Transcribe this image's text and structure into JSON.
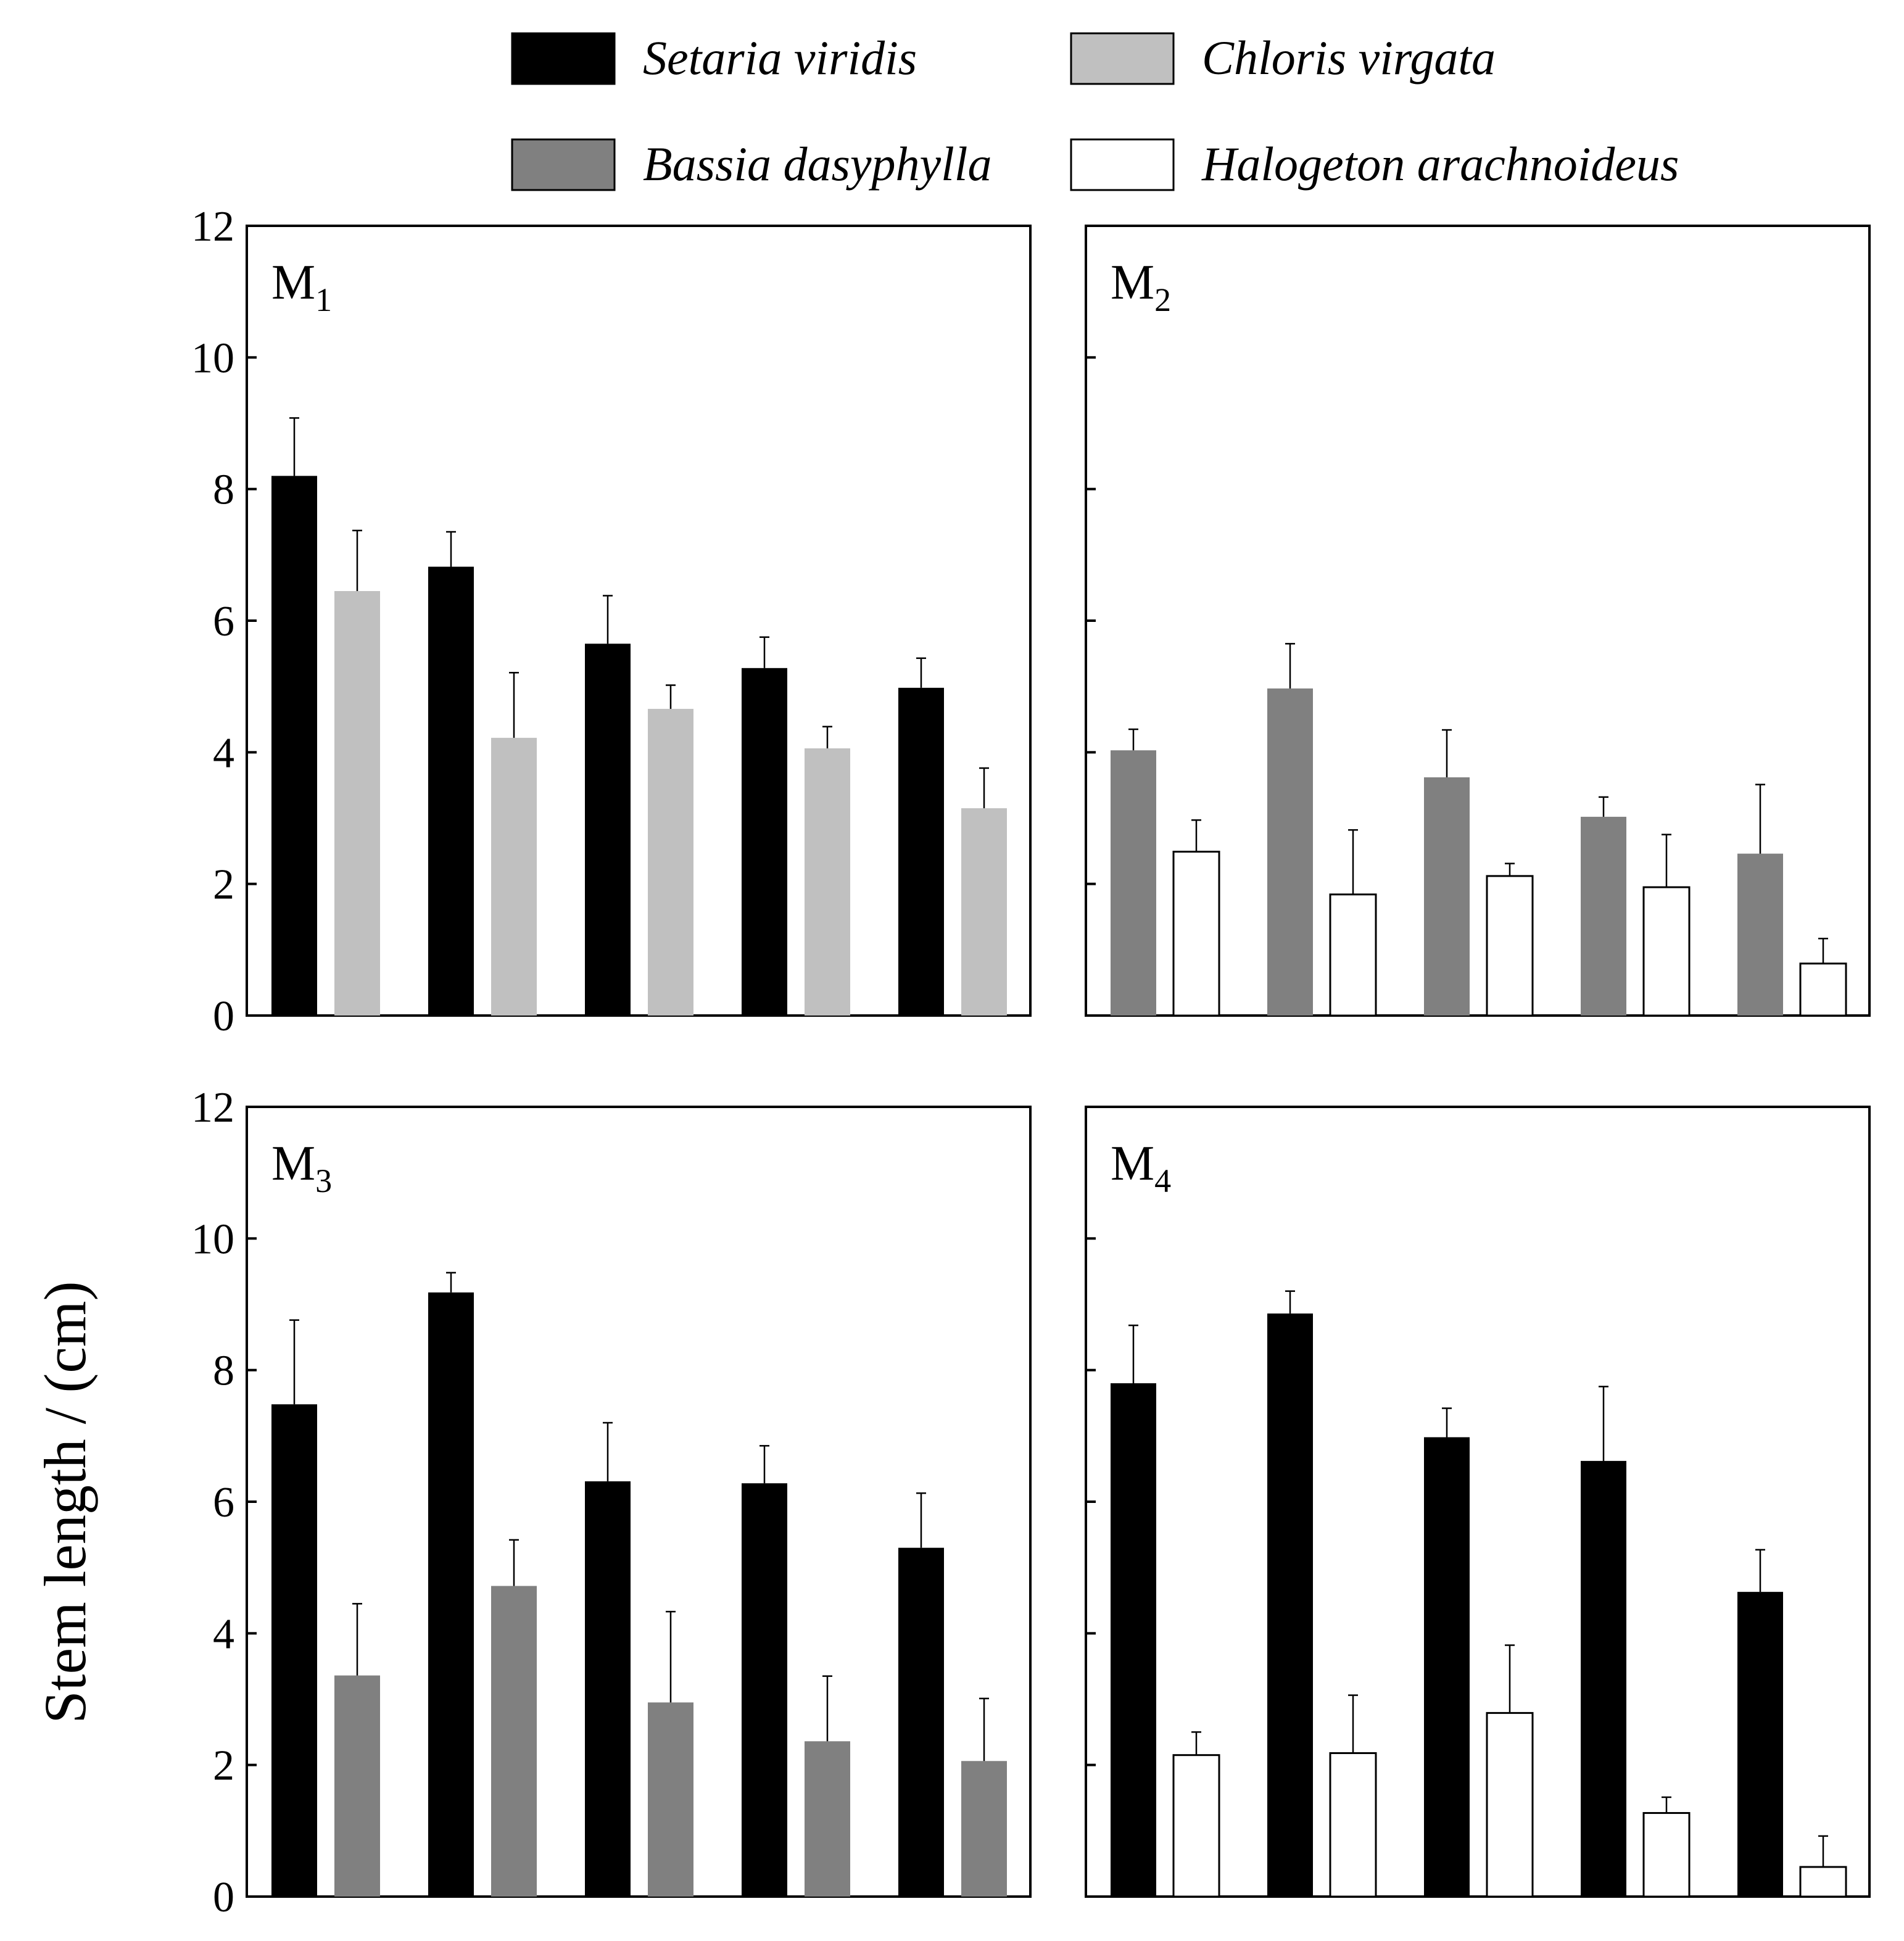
{
  "chart_data": {
    "type": "bar",
    "ylabel": "Stem length / (cm)",
    "ylim": [
      0,
      12
    ],
    "yticks": [
      0,
      2,
      4,
      6,
      8,
      10,
      12
    ],
    "legend": [
      {
        "key": "setaria",
        "name": "Setaria viridis",
        "color": "#000000"
      },
      {
        "key": "chloris",
        "name": "Chloris virgata",
        "color": "#c0c0c0"
      },
      {
        "key": "bassia",
        "name": "Bassia dasyphylla",
        "color": "#808080"
      },
      {
        "key": "halogeton",
        "name": "Halogeton arachnoideus",
        "color": "#ffffff"
      }
    ],
    "panels": [
      {
        "label": "M",
        "sub": "1",
        "series": [
          {
            "key": "setaria",
            "values": [
              8.2,
              6.82,
              5.65,
              5.28,
              4.98
            ],
            "errors": [
              0.88,
              0.53,
              0.73,
              0.47,
              0.45
            ]
          },
          {
            "key": "chloris",
            "values": [
              6.45,
              4.22,
              4.66,
              4.06,
              3.15
            ],
            "errors": [
              0.92,
              0.99,
              0.36,
              0.33,
              0.61
            ]
          }
        ]
      },
      {
        "label": "M",
        "sub": "2",
        "series": [
          {
            "key": "bassia",
            "values": [
              4.03,
              4.97,
              3.62,
              3.02,
              2.46
            ],
            "errors": [
              0.32,
              0.68,
              0.72,
              0.3,
              1.05
            ]
          },
          {
            "key": "halogeton",
            "values": [
              2.49,
              1.84,
              2.12,
              1.95,
              0.79
            ],
            "errors": [
              0.48,
              0.98,
              0.19,
              0.8,
              0.38
            ]
          }
        ]
      },
      {
        "label": "M",
        "sub": "3",
        "series": [
          {
            "key": "setaria",
            "values": [
              7.48,
              9.18,
              6.31,
              6.28,
              5.3
            ],
            "errors": [
              1.28,
              0.3,
              0.89,
              0.57,
              0.83
            ]
          },
          {
            "key": "bassia",
            "values": [
              3.36,
              4.72,
              2.95,
              2.36,
              2.06
            ],
            "errors": [
              1.09,
              0.7,
              1.38,
              0.99,
              0.95
            ]
          }
        ]
      },
      {
        "label": "M",
        "sub": "4",
        "series": [
          {
            "key": "setaria",
            "values": [
              7.8,
              8.86,
              6.98,
              6.62,
              4.63
            ],
            "errors": [
              0.88,
              0.34,
              0.44,
              1.13,
              0.64
            ]
          },
          {
            "key": "halogeton",
            "values": [
              2.15,
              2.18,
              2.79,
              1.27,
              0.45
            ],
            "errors": [
              0.35,
              0.88,
              1.03,
              0.24,
              0.47
            ]
          }
        ]
      }
    ]
  }
}
